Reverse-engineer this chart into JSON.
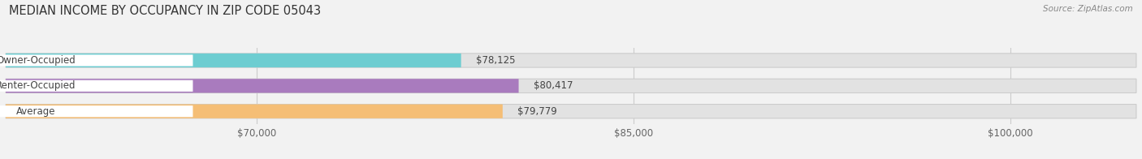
{
  "title": "MEDIAN INCOME BY OCCUPANCY IN ZIP CODE 05043",
  "source": "Source: ZipAtlas.com",
  "categories": [
    "Owner-Occupied",
    "Renter-Occupied",
    "Average"
  ],
  "values": [
    78125,
    80417,
    79779
  ],
  "labels": [
    "$78,125",
    "$80,417",
    "$79,779"
  ],
  "bar_colors": [
    "#6dcdd1",
    "#a97bbe",
    "#f5be76"
  ],
  "xlim": [
    60000,
    105000
  ],
  "xticks": [
    70000,
    85000,
    100000
  ],
  "xtick_labels": [
    "$70,000",
    "$85,000",
    "$100,000"
  ],
  "background_color": "#f2f2f2",
  "bar_bg_color": "#e2e2e2",
  "title_fontsize": 10.5,
  "label_fontsize": 8.5,
  "tick_fontsize": 8.5,
  "bar_height": 0.55
}
